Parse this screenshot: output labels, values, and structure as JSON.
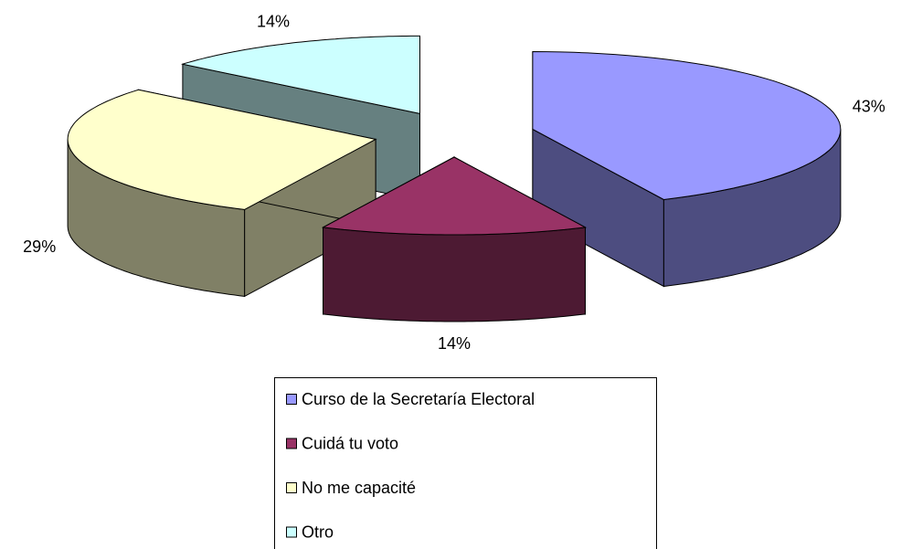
{
  "chart_data": {
    "type": "pie",
    "categories": [
      "Curso de la Secretaría Electoral",
      "Cuidá tu voto",
      "No me capacité",
      "Otro"
    ],
    "values": [
      43,
      14,
      29,
      14
    ],
    "value_labels": [
      "43%",
      "14%",
      "29%",
      "14%"
    ],
    "colors": [
      "#9999ff",
      "#993366",
      "#ffffcc",
      "#ccffff"
    ],
    "legend": "bottom"
  }
}
